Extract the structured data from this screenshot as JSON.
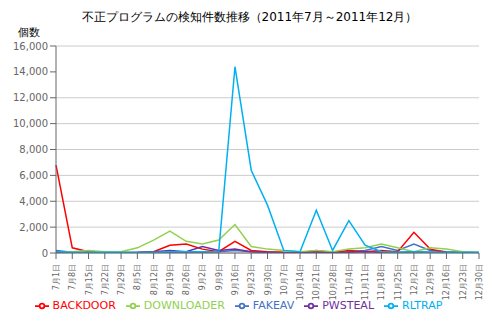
{
  "chart_data": {
    "type": "line",
    "title": "不正プログラムの検知件数推移（2011年7月～2011年12月）",
    "ylabel": "個数",
    "categories": [
      "7月1日",
      "7月8日",
      "7月15日",
      "7月22日",
      "7月29日",
      "8月5日",
      "8月12日",
      "8月19日",
      "8月26日",
      "9月2日",
      "9月9日",
      "9月16日",
      "9月23日",
      "9月30日",
      "10月7日",
      "10月14日",
      "10月21日",
      "10月28日",
      "11月4日",
      "11月11日",
      "11月18日",
      "11月25日",
      "12月2日",
      "12月9日",
      "12月16日",
      "12月23日",
      "12月30日"
    ],
    "series": [
      {
        "name": "FAKEAV",
        "color": "#4472C4",
        "values": [
          200,
          50,
          30,
          20,
          20,
          20,
          100,
          50,
          50,
          50,
          100,
          200,
          100,
          50,
          30,
          20,
          200,
          50,
          100,
          200,
          500,
          200,
          700,
          200,
          100,
          50,
          20
        ]
      },
      {
        "name": "BACKDOOR",
        "color": "#FF0000",
        "values": [
          6800,
          400,
          100,
          50,
          30,
          50,
          100,
          600,
          700,
          300,
          100,
          900,
          200,
          100,
          50,
          30,
          100,
          50,
          200,
          100,
          200,
          100,
          1600,
          300,
          50,
          30,
          20
        ]
      },
      {
        "name": "DOWNLOADER",
        "color": "#92D050",
        "values": [
          100,
          100,
          200,
          100,
          100,
          400,
          1000,
          1700,
          900,
          700,
          1000,
          2200,
          500,
          300,
          200,
          100,
          200,
          100,
          300,
          400,
          700,
          400,
          100,
          400,
          300,
          100,
          50
        ]
      },
      {
        "name": "PWSTEAL",
        "color": "#7030A0",
        "values": [
          50,
          20,
          20,
          10,
          10,
          10,
          100,
          200,
          100,
          500,
          200,
          300,
          100,
          50,
          20,
          10,
          50,
          20,
          50,
          100,
          50,
          50,
          100,
          50,
          20,
          10,
          10
        ]
      },
      {
        "name": "RLTRAP",
        "color": "#00B0F0",
        "values": [
          100,
          50,
          50,
          50,
          50,
          50,
          50,
          100,
          100,
          100,
          100,
          14400,
          6400,
          3700,
          200,
          100,
          3300,
          200,
          2500,
          600,
          100,
          50,
          100,
          50,
          50,
          50,
          50
        ]
      }
    ],
    "ylim": [
      0,
      16000
    ],
    "yticks": [
      0,
      {
        "value": 2000,
        "label": "2,000"
      },
      {
        "value": 4000,
        "label": "4,000"
      },
      {
        "value": 6000,
        "label": "6,000"
      },
      {
        "value": 8000,
        "label": "8,000"
      },
      {
        "value": 10000,
        "label": "10,000"
      },
      {
        "value": 12000,
        "label": "12,000"
      },
      {
        "value": 14000,
        "label": "14,000"
      },
      {
        "value": 16000,
        "label": "16,000"
      }
    ],
    "grid": true,
    "legend": "bottom"
  }
}
